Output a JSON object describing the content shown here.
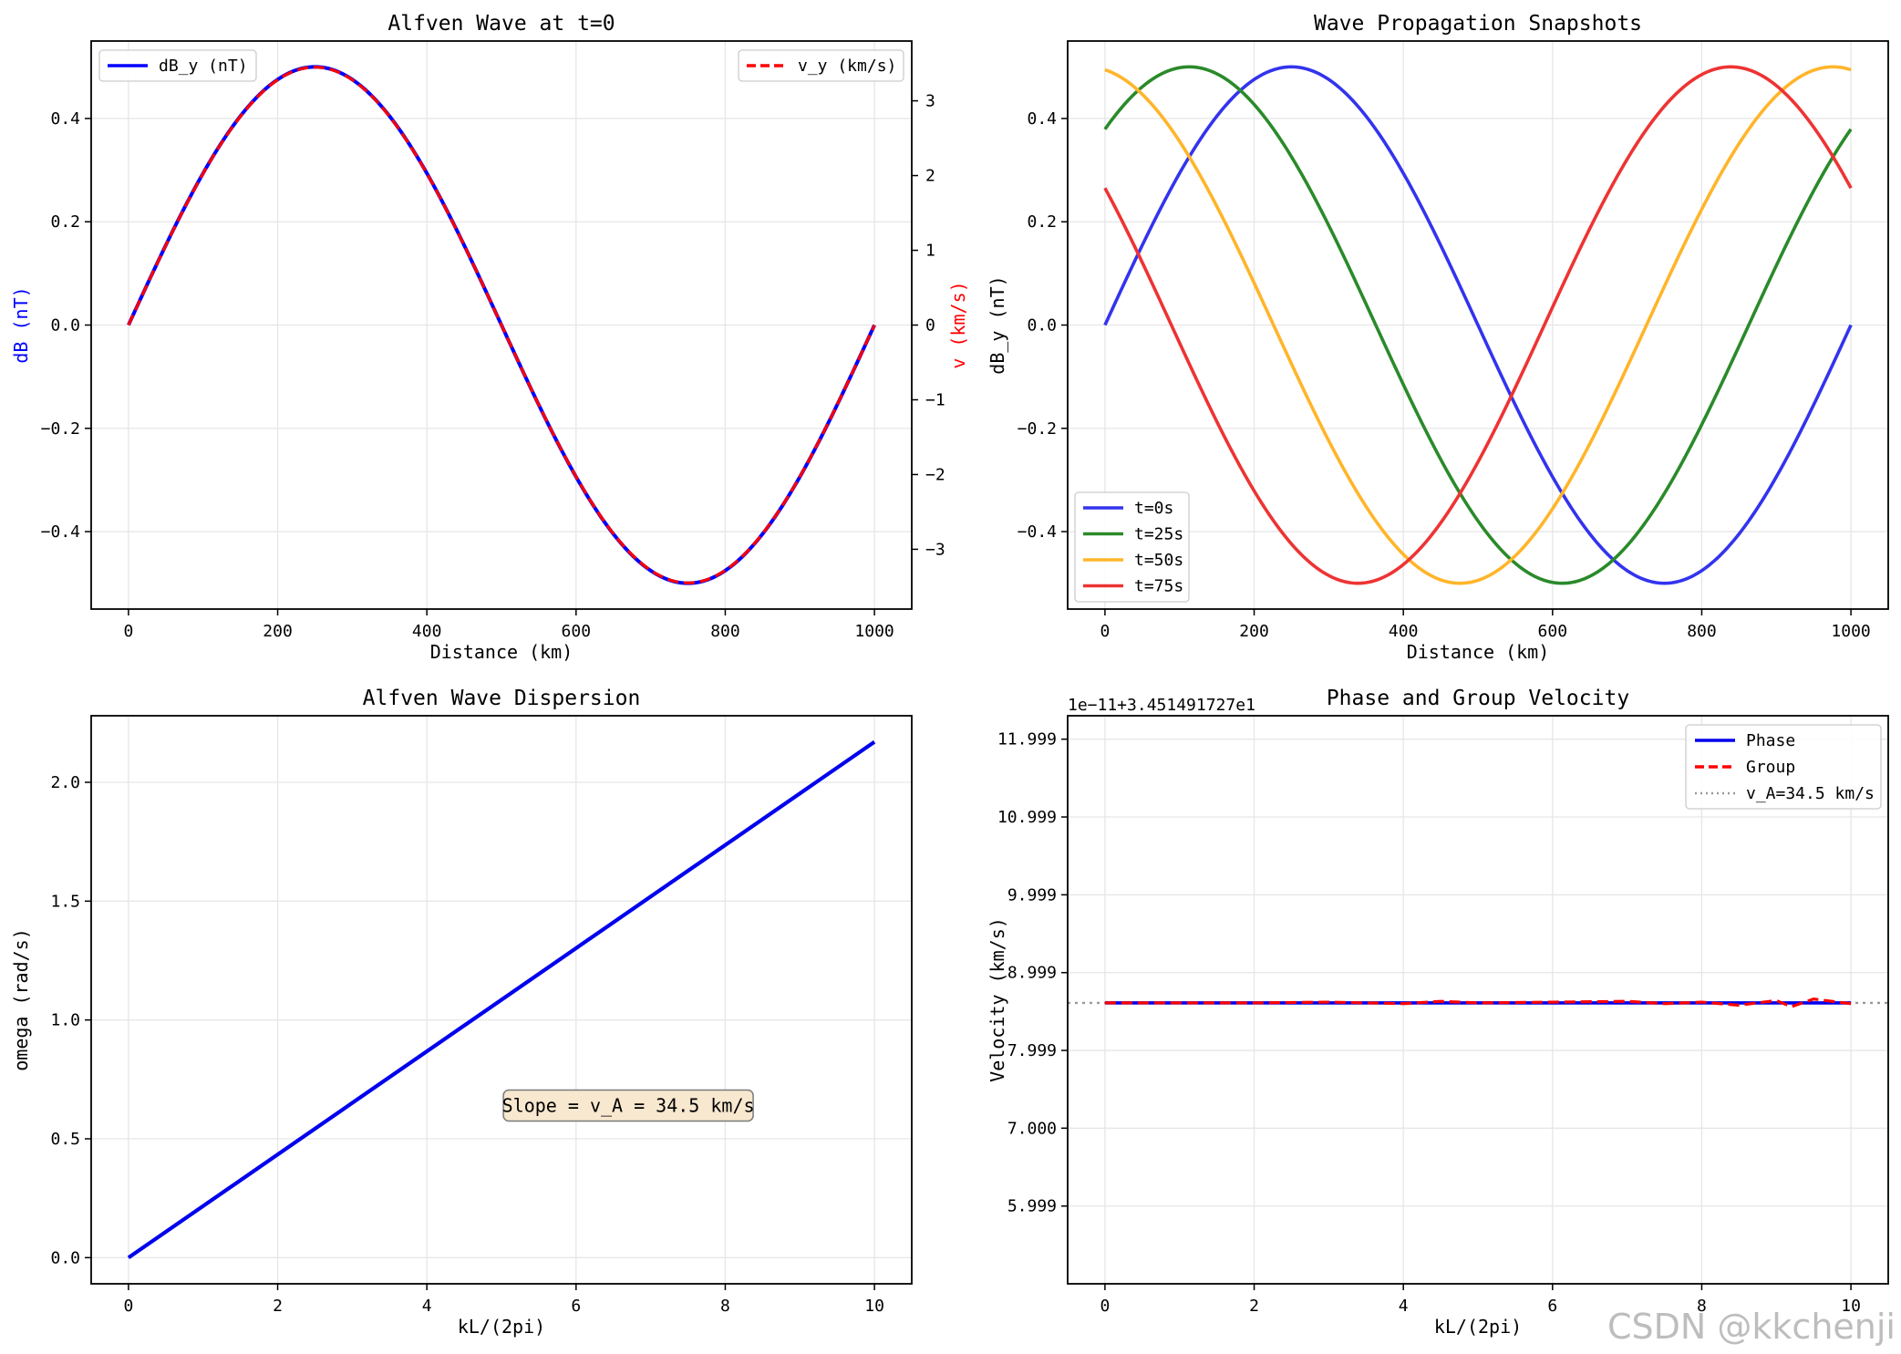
{
  "watermark": "CSDN @kkchenji",
  "chart_data": [
    {
      "type": "line",
      "title": "Alfven Wave at t=0",
      "xlabel": "Distance (km)",
      "ylabel": "dB (nT)",
      "ylabel_color": "#0000ff",
      "y2label": "v (km/s)",
      "y2label_color": "#ff0000",
      "xlim": [
        -50,
        1050
      ],
      "ylim": [
        -0.55,
        0.55
      ],
      "y2lim": [
        -3.8,
        3.8
      ],
      "xticks": [
        0,
        200,
        400,
        600,
        800,
        1000
      ],
      "xtick_labels": [
        "0",
        "200",
        "400",
        "600",
        "800",
        "1000"
      ],
      "yticks": [
        -0.4,
        -0.2,
        0.0,
        0.2,
        0.4
      ],
      "ytick_labels": [
        "−0.4",
        "−0.2",
        "0.0",
        "0.2",
        "0.4"
      ],
      "y2ticks": [
        -3,
        -2,
        -1,
        0,
        1,
        2,
        3
      ],
      "y2tick_labels": [
        "−3",
        "−2",
        "−1",
        "0",
        "1",
        "2",
        "3"
      ],
      "grid": true,
      "series": [
        {
          "name": "dB_y (nT)",
          "axis": "left",
          "color": "#0000ff",
          "style": "solid",
          "x_range": [
            0,
            1000
          ],
          "amplitude": 0.5,
          "wavelength_km": 1000,
          "phase_shift_km": 0
        },
        {
          "name": "v_y (km/s)",
          "axis": "right",
          "color": "#ff0000",
          "style": "dashed",
          "x_range": [
            0,
            1000
          ],
          "amplitude": 3.45,
          "wavelength_km": 1000,
          "phase_shift_km": 0
        }
      ],
      "legend": [
        {
          "label": "dB_y (nT)",
          "placement": "upper-left"
        },
        {
          "label": "v_y (km/s)",
          "placement": "upper-right"
        }
      ]
    },
    {
      "type": "line",
      "title": "Wave Propagation Snapshots",
      "xlabel": "Distance (km)",
      "ylabel": "dB_y (nT)",
      "xlim": [
        -50,
        1050
      ],
      "ylim": [
        -0.55,
        0.55
      ],
      "xticks": [
        0,
        200,
        400,
        600,
        800,
        1000
      ],
      "xtick_labels": [
        "0",
        "200",
        "400",
        "600",
        "800",
        "1000"
      ],
      "yticks": [
        -0.4,
        -0.2,
        0.0,
        0.2,
        0.4
      ],
      "ytick_labels": [
        "−0.4",
        "−0.2",
        "0.0",
        "0.2",
        "0.4"
      ],
      "grid": true,
      "legend_placement": "lower-left",
      "series": [
        {
          "name": "t=0s",
          "color": "#3333ee",
          "x_range": [
            0,
            1000
          ],
          "amplitude": 0.5,
          "wavelength_km": 1000,
          "phase_shift_km": 0
        },
        {
          "name": "t=25s",
          "color": "#2a8a2a",
          "x_range": [
            0,
            1000
          ],
          "amplitude": 0.5,
          "wavelength_km": 1000,
          "phase_shift_km": 137
        },
        {
          "name": "t=50s",
          "color": "#ffb52a",
          "x_range": [
            0,
            1000
          ],
          "amplitude": 0.5,
          "wavelength_km": 1000,
          "phase_shift_km": 274
        },
        {
          "name": "t=75s",
          "color": "#ee3333",
          "x_range": [
            0,
            1000
          ],
          "amplitude": 0.5,
          "wavelength_km": 1000,
          "phase_shift_km": 411
        }
      ]
    },
    {
      "type": "line",
      "title": "Alfven Wave Dispersion",
      "xlabel": "kL/(2pi)",
      "ylabel": "omega (rad/s)",
      "xlim": [
        -0.5,
        10.5
      ],
      "ylim": [
        -0.11,
        2.28
      ],
      "xticks": [
        0,
        2,
        4,
        6,
        8,
        10
      ],
      "xtick_labels": [
        "0",
        "2",
        "4",
        "6",
        "8",
        "10"
      ],
      "yticks": [
        0.0,
        0.5,
        1.0,
        1.5,
        2.0
      ],
      "ytick_labels": [
        "0.0",
        "0.5",
        "1.0",
        "1.5",
        "2.0"
      ],
      "grid": true,
      "series": [
        {
          "name": "omega",
          "color": "#0000ee",
          "x": [
            0,
            10
          ],
          "y": [
            0.0,
            2.17
          ]
        }
      ],
      "annotation": {
        "text": "Slope = v_A = 34.5 km/s",
        "x": 6.7,
        "y": 0.64
      }
    },
    {
      "type": "line",
      "title": "Phase and Group Velocity",
      "xlabel": "kL/(2pi)",
      "ylabel": "Velocity (km/s)",
      "offset_text": "1e−11+3.451491727e1",
      "xlim": [
        -0.5,
        10.5
      ],
      "ylim": [
        5.0,
        12.3
      ],
      "xticks": [
        0,
        2,
        4,
        6,
        8,
        10
      ],
      "xtick_labels": [
        "0",
        "2",
        "4",
        "6",
        "8",
        "10"
      ],
      "yticks": [
        5.999,
        7.0,
        7.999,
        8.999,
        9.999,
        10.999,
        11.999
      ],
      "ytick_labels": [
        "5.999",
        "7.000",
        "7.999",
        "8.999",
        "9.999",
        "10.999",
        "11.999"
      ],
      "grid": true,
      "legend_placement": "upper-right",
      "series": [
        {
          "name": "Phase",
          "color": "#0000ee",
          "style": "solid",
          "x": [
            0,
            10
          ],
          "y": [
            8.61,
            8.61
          ]
        },
        {
          "name": "Group",
          "color": "#ff0000",
          "style": "dashed",
          "x": [
            0,
            1,
            2,
            3,
            4,
            4.5,
            5,
            6,
            7,
            7.5,
            8,
            8.5,
            9,
            9.2,
            9.5,
            10
          ],
          "y": [
            8.61,
            8.61,
            8.61,
            8.62,
            8.6,
            8.63,
            8.61,
            8.62,
            8.63,
            8.6,
            8.62,
            8.58,
            8.64,
            8.56,
            8.66,
            8.6
          ]
        },
        {
          "name": "v_A=34.5 km/s",
          "color": "#999999",
          "style": "dotted",
          "x": [
            -0.5,
            10.5
          ],
          "y": [
            8.61,
            8.61
          ]
        }
      ]
    }
  ]
}
